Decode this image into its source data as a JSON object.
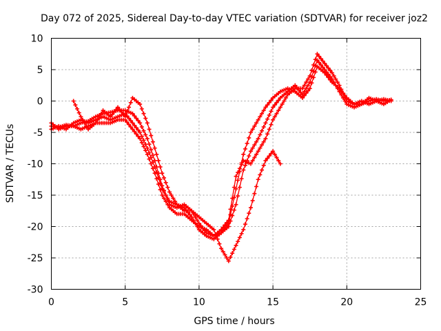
{
  "chart_data": {
    "type": "scatter",
    "title": "Day 072 of 2025, Sidereal Day-to-day VTEC variation (SDTVAR) for receiver joz2",
    "xlabel": "GPS time / hours",
    "ylabel": "SDTVAR / TECUs",
    "xlim": [
      0,
      25
    ],
    "ylim": [
      -30,
      10
    ],
    "xticks": [
      "0",
      "5",
      "10",
      "15",
      "20",
      "25"
    ],
    "yticks": [
      "-30",
      "-25",
      "-20",
      "-15",
      "-10",
      "-5",
      "0",
      "5",
      "10"
    ],
    "grid": true,
    "marker": "plus",
    "color": "#ff0000",
    "series": [
      {
        "name": "track-1",
        "x": [
          0.0,
          0.5,
          1.0,
          1.5,
          2.0,
          2.5,
          3.0,
          3.5,
          4.0,
          4.5,
          5.0,
          5.5,
          6.0,
          6.5,
          7.0,
          7.5,
          8.0,
          8.5,
          9.0,
          9.5,
          10.0,
          10.5,
          11.0,
          11.5,
          12.0,
          12.5,
          13.0,
          13.5,
          14.0,
          14.5,
          15.0,
          15.5,
          16.0,
          16.5,
          17.0,
          17.5,
          18.0,
          18.5,
          19.0,
          19.5,
          20.0,
          20.5,
          21.0,
          21.5,
          22.0,
          22.5,
          23.0
        ],
        "y": [
          -4.0,
          -4.2,
          -3.8,
          -4.0,
          -3.5,
          -3.2,
          -2.5,
          -2.0,
          -1.8,
          -1.5,
          -1.5,
          -2.0,
          -3.5,
          -6.0,
          -9.5,
          -13.5,
          -16.5,
          -17.0,
          -16.5,
          -17.5,
          -19.5,
          -21.0,
          -21.5,
          -21.0,
          -19.5,
          -14.0,
          -8.5,
          -5.0,
          -3.0,
          -1.0,
          0.5,
          1.5,
          2.0,
          1.5,
          0.5,
          2.0,
          5.5,
          4.5,
          3.0,
          2.0,
          0.5,
          -0.5,
          0.0,
          -0.5,
          0.0,
          0.3,
          0.0
        ]
      },
      {
        "name": "track-2",
        "x": [
          0.0,
          0.5,
          1.0,
          1.5,
          2.0,
          2.5,
          3.0,
          3.5,
          4.0,
          4.5,
          5.0,
          5.5,
          6.0,
          6.5,
          7.0,
          7.5,
          8.0,
          8.5,
          9.0,
          9.5,
          10.0,
          10.5,
          11.0,
          11.5,
          12.0,
          12.5,
          13.0,
          13.5,
          14.0,
          14.5,
          15.0,
          15.5,
          16.0,
          16.5,
          17.0,
          17.5,
          18.0,
          18.5,
          19.0,
          19.5,
          20.0,
          20.5,
          21.0,
          21.5,
          22.0,
          22.5,
          23.0
        ],
        "y": [
          -4.5,
          -4.0,
          -4.5,
          -3.5,
          -3.0,
          -3.5,
          -3.0,
          -2.5,
          -3.0,
          -2.5,
          -2.0,
          -3.5,
          -5.0,
          -7.5,
          -10.5,
          -14.0,
          -16.0,
          -16.5,
          -17.0,
          -18.5,
          -20.5,
          -21.5,
          -22.0,
          -21.0,
          -20.0,
          -16.5,
          -11.0,
          -8.0,
          -6.0,
          -3.5,
          -1.0,
          0.5,
          1.5,
          2.5,
          1.0,
          3.0,
          6.5,
          5.0,
          3.5,
          1.5,
          -0.5,
          -1.0,
          -0.5,
          0.5,
          0.0,
          -0.5,
          0.2
        ]
      },
      {
        "name": "track-3",
        "x": [
          0.0,
          0.5,
          1.0,
          1.5,
          2.0,
          2.5,
          3.0,
          3.5,
          4.0,
          4.5,
          5.0,
          5.5,
          6.0,
          6.5,
          7.0,
          7.5,
          8.0,
          8.5,
          9.0,
          9.5,
          10.0,
          10.5,
          11.0,
          11.5,
          12.0,
          12.5,
          13.0,
          13.5,
          14.0,
          14.5,
          15.0,
          15.5,
          16.0,
          16.5,
          17.0,
          17.5,
          18.0,
          18.5,
          19.0,
          19.5,
          20.0,
          20.5,
          21.0,
          21.5,
          22.0,
          22.5,
          23.0
        ],
        "y": [
          -3.5,
          -4.5,
          -4.0,
          -4.0,
          -4.5,
          -4.0,
          -3.5,
          -3.5,
          -3.5,
          -3.0,
          -3.0,
          -4.5,
          -6.0,
          -8.5,
          -11.5,
          -15.0,
          -17.0,
          -18.0,
          -18.0,
          -19.0,
          -20.0,
          -20.5,
          -21.5,
          -20.5,
          -19.0,
          -12.0,
          -9.5,
          -10.0,
          -8.0,
          -6.0,
          -3.0,
          -1.0,
          1.0,
          2.0,
          2.0,
          4.0,
          7.5,
          6.0,
          4.5,
          2.5,
          0.0,
          -0.5,
          -0.5,
          0.0,
          0.3,
          0.0,
          0.2
        ]
      },
      {
        "name": "track-4",
        "x": [
          1.5,
          2.0,
          2.5,
          3.0,
          3.5,
          4.0,
          4.5,
          5.0,
          5.5,
          6.0,
          6.5,
          7.0,
          7.5,
          8.0,
          8.5,
          9.0,
          9.5,
          10.0,
          10.5,
          11.0,
          11.5,
          12.0,
          12.5,
          13.0,
          13.5,
          14.0,
          14.5,
          15.0,
          15.5
        ],
        "y": [
          0.0,
          -2.5,
          -4.5,
          -3.5,
          -1.5,
          -2.5,
          -1.0,
          -2.5,
          0.5,
          -0.5,
          -3.5,
          -7.5,
          -11.5,
          -14.5,
          -16.5,
          -17.5,
          -17.5,
          -18.5,
          -19.5,
          -20.5,
          -23.5,
          -25.5,
          -23.0,
          -20.5,
          -17.0,
          -12.5,
          -9.5,
          -8.0,
          -10.0
        ]
      }
    ]
  }
}
